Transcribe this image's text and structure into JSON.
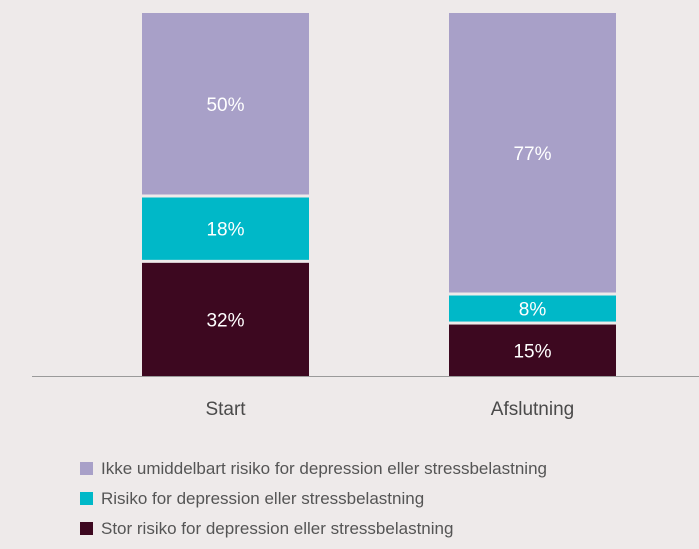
{
  "chart_data": {
    "type": "bar",
    "stacked": true,
    "percent_stacked": true,
    "categories": [
      "Start",
      "Afslutning"
    ],
    "series": [
      {
        "name": "Stor risiko for depression eller stressbelastning",
        "values": [
          32,
          15
        ],
        "labels": [
          "32%",
          "15%"
        ],
        "color": "#3d0820",
        "label_color": "#ffffff"
      },
      {
        "name": "Risiko for depression eller stressbelastning",
        "values": [
          18,
          8
        ],
        "labels": [
          "18%",
          "8%"
        ],
        "color": "#00b8c8",
        "label_color": "#ffffff"
      },
      {
        "name": "Ikke umiddelbart risiko for depression eller stressbelastning",
        "values": [
          50,
          77
        ],
        "labels": [
          "50%",
          "77%"
        ],
        "color": "#a8a0c8",
        "label_color": "#ffffff"
      }
    ],
    "legend_order": [
      2,
      1,
      0
    ],
    "legend_position": "bottom",
    "ylim": [
      0,
      100
    ],
    "grid": false,
    "title": "",
    "xlabel": "",
    "ylabel": ""
  },
  "colors": {
    "background": "#eeeaea",
    "axis": "#9a9a9a",
    "separator": "#eeeaea"
  }
}
